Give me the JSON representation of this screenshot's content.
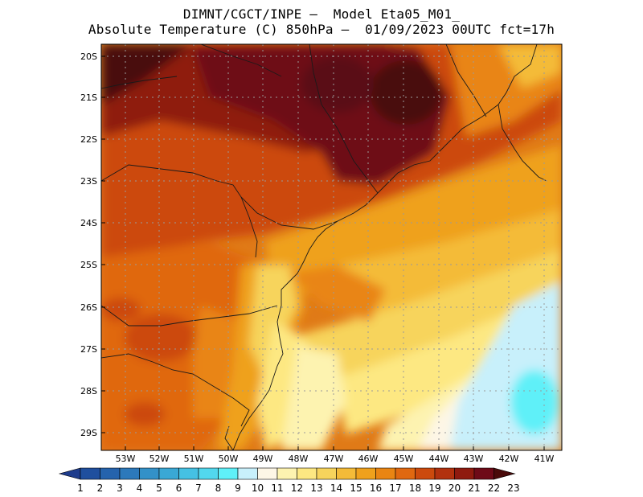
{
  "title": {
    "line1": "DIMNT/CGCT/INPE –  Model Eta05_M01_",
    "line2": "Absolute Temperature (C) 850hPa –  01/09/2023 00UTC fct=17h"
  },
  "lat_labels": [
    "20S",
    "21S",
    "22S",
    "23S",
    "24S",
    "25S",
    "26S",
    "27S",
    "28S",
    "29S"
  ],
  "lon_labels": [
    "53W",
    "52W",
    "51W",
    "50W",
    "49W",
    "48W",
    "47W",
    "46W",
    "45W",
    "44W",
    "43W",
    "42W",
    "41W"
  ],
  "colorbar": {
    "labels": [
      "1",
      "2",
      "3",
      "4",
      "5",
      "6",
      "7",
      "8",
      "9",
      "10",
      "11",
      "12",
      "13",
      "14",
      "15",
      "16",
      "17",
      "18",
      "19",
      "20",
      "21",
      "22",
      "23"
    ],
    "colors": [
      "#1e3c8c",
      "#1f4f9e",
      "#2563ad",
      "#2c79bb",
      "#3391c8",
      "#3aa8d5",
      "#45c1e3",
      "#52d8ee",
      "#5ff0f8",
      "#c8f0fb",
      "#fdf6e6",
      "#fdf3b0",
      "#fde882",
      "#f7d45c",
      "#f4bb38",
      "#efa11c",
      "#e98513",
      "#e06810",
      "#cc4a0d",
      "#b2310e",
      "#8f1a0f",
      "#6e0a18",
      "#4a0a0a"
    ]
  },
  "map": {
    "lon_range": [
      -53.5,
      -40.5
    ],
    "lat_range": [
      -29.5,
      -19.8
    ],
    "grid": "dotted",
    "variable": "temperature_850hPa_C"
  }
}
